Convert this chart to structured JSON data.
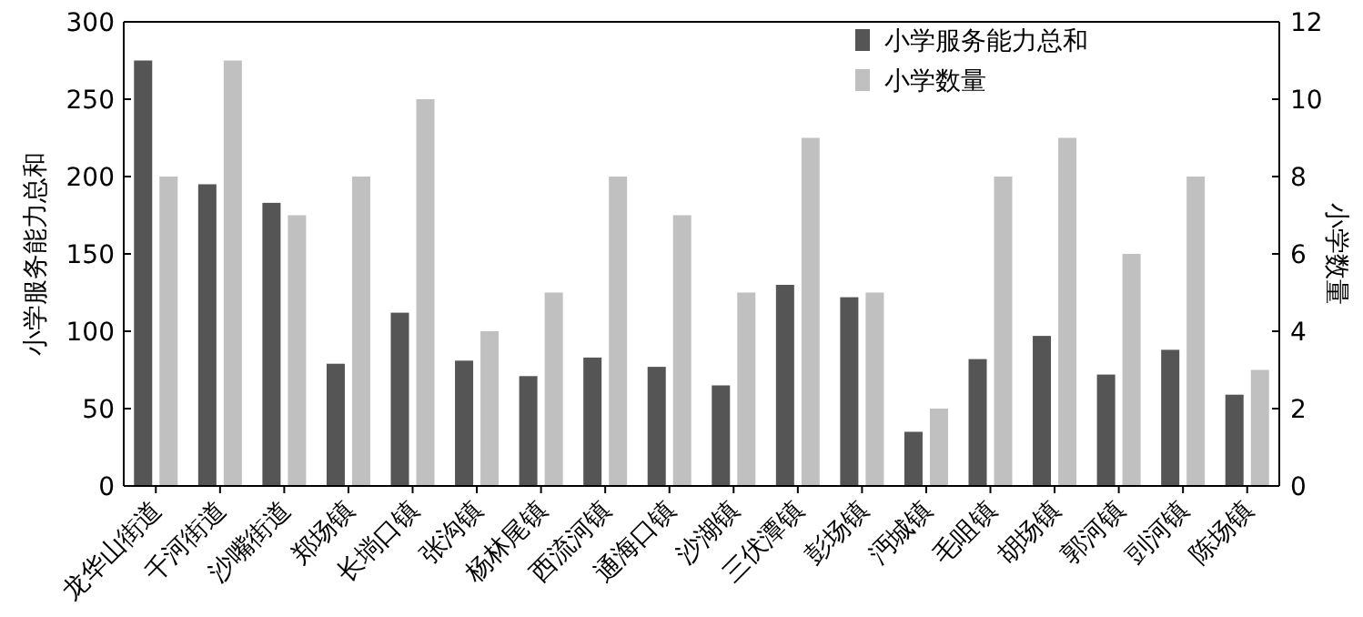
{
  "chart_data": {
    "type": "bar",
    "ylabel": "小学服务能力总和",
    "y2label": "小学数量",
    "categories": [
      "龙华山街道",
      "千河街道",
      "沙嘴街道",
      "郑场镇",
      "长埫口镇",
      "张沟镇",
      "杨林尾镇",
      "西流河镇",
      "通海口镇",
      "沙湖镇",
      "三伏潭镇",
      "彭场镇",
      "沔城镇",
      "毛咀镇",
      "胡场镇",
      "郭河镇",
      "剅河镇",
      "陈场镇"
    ],
    "series": [
      {
        "name": "小学服务能力总和",
        "color": "#555555",
        "values": [
          275,
          195,
          183,
          79,
          112,
          81,
          71,
          83,
          77,
          65,
          130,
          122,
          35,
          82,
          97,
          72,
          88,
          59
        ]
      },
      {
        "name": "小学数量",
        "color": "#c0c0c0",
        "axis": "y2",
        "values": [
          8,
          11,
          7,
          8,
          10,
          4,
          5,
          8,
          7,
          5,
          9,
          5,
          2,
          8,
          9,
          6,
          8,
          3
        ]
      }
    ],
    "ylim": [
      0,
      300
    ],
    "yticks": [
      0,
      50,
      100,
      150,
      200,
      250,
      300
    ],
    "y2lim": [
      0,
      12
    ],
    "y2ticks": [
      0,
      2,
      4,
      6,
      8,
      10,
      12
    ],
    "legend": "top",
    "grid": false
  }
}
